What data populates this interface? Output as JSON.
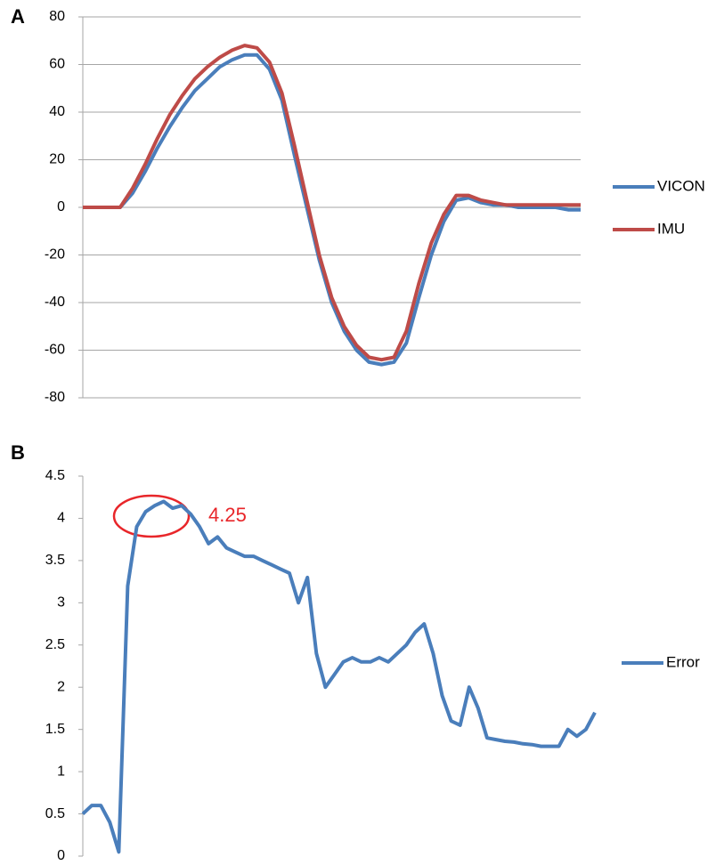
{
  "chart_data": [
    {
      "type": "line",
      "panel_label": "A",
      "ylim": [
        -80,
        80
      ],
      "yticks": [
        -80,
        -60,
        -40,
        -20,
        0,
        20,
        40,
        60,
        80
      ],
      "grid": true,
      "legend": "right",
      "series": [
        {
          "name": "VICON",
          "color": "#4a7ebb",
          "values": [
            0,
            0,
            0,
            0,
            6,
            15,
            25,
            34,
            42,
            49,
            54,
            59,
            62,
            64,
            64,
            58,
            45,
            22,
            0,
            -22,
            -40,
            -52,
            -60,
            -65,
            -66,
            -65,
            -57,
            -38,
            -20,
            -6,
            3,
            4,
            2,
            1,
            1,
            0,
            0,
            0,
            0,
            -1,
            -1
          ]
        },
        {
          "name": "IMU",
          "color": "#be4b48",
          "values": [
            0,
            0,
            0,
            0,
            8,
            18,
            29,
            39,
            47,
            54,
            59,
            63,
            66,
            68,
            67,
            61,
            48,
            26,
            3,
            -20,
            -38,
            -50,
            -58,
            -63,
            -64,
            -63,
            -52,
            -32,
            -15,
            -3,
            5,
            5,
            3,
            2,
            1,
            1,
            1,
            1,
            1,
            1,
            1
          ]
        }
      ]
    },
    {
      "type": "line",
      "panel_label": "B",
      "ylim": [
        0,
        4.5
      ],
      "yticks": [
        0,
        0.5,
        1,
        1.5,
        2,
        2.5,
        3,
        3.5,
        4,
        4.5
      ],
      "grid": false,
      "legend": "right",
      "annotation": "4.25",
      "series": [
        {
          "name": "Error",
          "color": "#4a7ebb",
          "values": [
            0.5,
            0.6,
            0.6,
            0.4,
            0.05,
            3.2,
            3.9,
            4.08,
            4.15,
            4.2,
            4.12,
            4.15,
            4.05,
            3.9,
            3.7,
            3.78,
            3.65,
            3.6,
            3.55,
            3.55,
            3.5,
            3.45,
            3.4,
            3.35,
            3.0,
            3.3,
            2.4,
            2.0,
            2.15,
            2.3,
            2.35,
            2.3,
            2.3,
            2.35,
            2.3,
            2.4,
            2.5,
            2.65,
            2.75,
            2.4,
            1.9,
            1.6,
            1.55,
            2.0,
            1.75,
            1.4,
            1.38,
            1.36,
            1.35,
            1.33,
            1.32,
            1.3,
            1.3,
            1.3,
            1.5,
            1.42,
            1.5,
            1.7
          ]
        }
      ]
    }
  ]
}
